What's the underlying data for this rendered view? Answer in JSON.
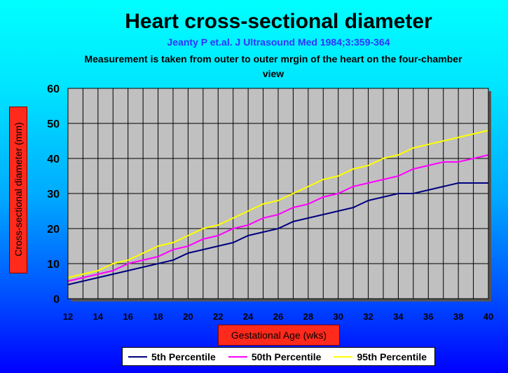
{
  "chart_data": {
    "type": "line",
    "title": "Heart cross-sectional diameter",
    "subtitle": "Jeanty P et.al. J Ultrasound Med 1984;3:359-364",
    "note": "Measurement is taken from outer to outer mrgin of the heart on the four-chamber view",
    "xlabel": "Gestational Age (wks)",
    "ylabel": "Cross-sectional diameter (mm)",
    "x": [
      12,
      13,
      14,
      15,
      16,
      17,
      18,
      19,
      20,
      21,
      22,
      23,
      24,
      25,
      26,
      27,
      28,
      29,
      30,
      31,
      32,
      33,
      34,
      35,
      36,
      37,
      38,
      39,
      40
    ],
    "xlim": [
      12,
      40
    ],
    "ylim": [
      0,
      60
    ],
    "xticks": [
      "12",
      "14",
      "16",
      "18",
      "20",
      "22",
      "24",
      "26",
      "28",
      "30",
      "32",
      "34",
      "36",
      "38",
      "40"
    ],
    "yticks": [
      "0",
      "10",
      "20",
      "30",
      "40",
      "50",
      "60"
    ],
    "grid": true,
    "legend_position": "bottom",
    "series": [
      {
        "name": "5th Percentile",
        "color": "#000080",
        "values": [
          4,
          5,
          6,
          7,
          8,
          9,
          10,
          11,
          13,
          14,
          15,
          16,
          18,
          19,
          20,
          22,
          23,
          24,
          25,
          26,
          28,
          29,
          30,
          30,
          31,
          32,
          33,
          33,
          33
        ]
      },
      {
        "name": "50th Percentile",
        "color": "#FF00FF",
        "values": [
          5,
          6,
          7,
          8,
          10,
          11,
          12,
          14,
          15,
          17,
          18,
          20,
          21,
          23,
          24,
          26,
          27,
          29,
          30,
          32,
          33,
          34,
          35,
          37,
          38,
          39,
          39,
          40,
          41
        ]
      },
      {
        "name": "95th Percentile",
        "color": "#FFFF00",
        "values": [
          6,
          7,
          8,
          10,
          11,
          13,
          15,
          16,
          18,
          20,
          21,
          23,
          25,
          27,
          28,
          30,
          32,
          34,
          35,
          37,
          38,
          40,
          41,
          43,
          44,
          45,
          46,
          47,
          48
        ]
      }
    ]
  }
}
